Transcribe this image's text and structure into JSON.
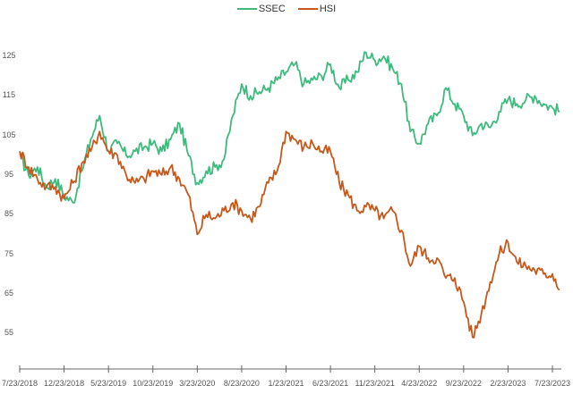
{
  "chart_data": {
    "type": "line",
    "title": "",
    "xlabel": "",
    "ylabel": "",
    "ylim": [
      48,
      131
    ],
    "grid": false,
    "legend_position": "top",
    "yticks": [
      125,
      115,
      105,
      95,
      85,
      75,
      65,
      55
    ],
    "xticks": [
      "7/23/2018",
      "12/23/2018",
      "5/23/2019",
      "10/23/2019",
      "3/23/2020",
      "8/23/2020",
      "1/23/2021",
      "6/23/2021",
      "11/23/2021",
      "4/23/2022",
      "9/23/2022",
      "2/23/2023",
      "7/23/2023"
    ],
    "x": [
      "2018-07",
      "2018-08",
      "2018-09",
      "2018-10",
      "2018-11",
      "2018-12",
      "2019-01",
      "2019-02",
      "2019-03",
      "2019-04",
      "2019-05",
      "2019-06",
      "2019-07",
      "2019-08",
      "2019-09",
      "2019-10",
      "2019-11",
      "2019-12",
      "2020-01",
      "2020-02",
      "2020-03",
      "2020-04",
      "2020-05",
      "2020-06",
      "2020-07",
      "2020-08",
      "2020-09",
      "2020-10",
      "2020-11",
      "2020-12",
      "2021-01",
      "2021-02",
      "2021-03",
      "2021-04",
      "2021-05",
      "2021-06",
      "2021-07",
      "2021-08",
      "2021-09",
      "2021-10",
      "2021-11",
      "2021-12",
      "2022-01",
      "2022-02",
      "2022-03",
      "2022-04",
      "2022-05",
      "2022-06",
      "2022-07",
      "2022-08",
      "2022-09",
      "2022-10",
      "2022-11",
      "2022-12",
      "2023-01",
      "2023-02",
      "2023-03",
      "2023-04",
      "2023-05",
      "2023-06",
      "2023-07",
      "2023-08"
    ],
    "series": [
      {
        "name": "SSEC",
        "color": "#3dba7c",
        "values": [
          100,
          95,
          97,
          92,
          94,
          90,
          88,
          96,
          104,
          110,
          101,
          103,
          100,
          101,
          102,
          103,
          101,
          104,
          108,
          100,
          93,
          96,
          97,
          99,
          110,
          118,
          115,
          116,
          117,
          119,
          121,
          123,
          118,
          119,
          120,
          123,
          117,
          119,
          121,
          126,
          124,
          125,
          122,
          118,
          106,
          103,
          108,
          110,
          117,
          113,
          110,
          105,
          108,
          107,
          111,
          114,
          113,
          114,
          115,
          113,
          112,
          111
        ]
      },
      {
        "name": "HSI",
        "color": "#c8581a",
        "values": [
          101,
          97,
          94,
          92,
          92,
          89,
          93,
          98,
          101,
          106,
          101,
          100,
          95,
          93,
          94,
          96,
          95,
          97,
          94,
          90,
          80,
          85,
          84,
          86,
          88,
          86,
          84,
          87,
          93,
          96,
          106,
          104,
          102,
          103,
          101,
          101,
          93,
          90,
          86,
          87,
          86,
          84,
          86,
          81,
          72,
          77,
          74,
          74,
          69,
          69,
          63,
          54,
          60,
          68,
          75,
          78,
          73,
          72,
          71,
          70,
          70,
          66
        ]
      }
    ]
  }
}
